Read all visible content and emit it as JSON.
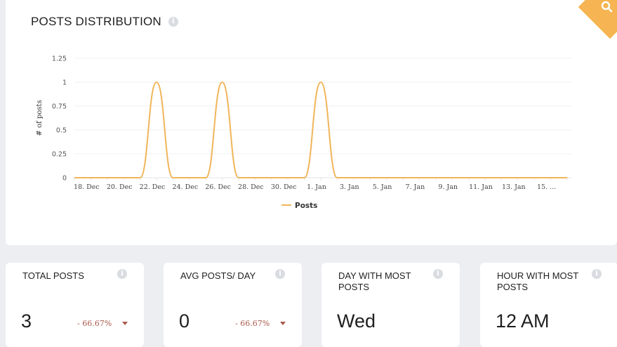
{
  "posts_distribution": {
    "title": "POSTS DISTRIBUTION"
  },
  "accent_color": "#f6b552",
  "line_color": "#f0b55a",
  "change_color": "#a8594b",
  "chart_data": {
    "type": "line",
    "xlabel": "",
    "ylabel": "# of posts",
    "ylim": [
      0,
      1.25
    ],
    "y_ticks": [
      "1.25",
      "1",
      "0.75",
      "0.5",
      "0.25",
      "0"
    ],
    "x_tick_labels": [
      "18. Dec",
      "20. Dec",
      "22. Dec",
      "24. Dec",
      "26. Dec",
      "28. Dec",
      "30. Dec",
      "1. Jan",
      "3. Jan",
      "5. Jan",
      "7. Jan",
      "9. Jan",
      "11. Jan",
      "13. Jan",
      "15. ..."
    ],
    "x_range": [
      "17. Dec",
      "16. Jan"
    ],
    "grid": true,
    "legend": "bottom-center",
    "series": [
      {
        "name": "Posts",
        "x": [
          "17. Dec",
          "18. Dec",
          "19. Dec",
          "20. Dec",
          "21. Dec",
          "22. Dec",
          "23. Dec",
          "24. Dec",
          "25. Dec",
          "26. Dec",
          "27. Dec",
          "28. Dec",
          "29. Dec",
          "30. Dec",
          "31. Dec",
          "1. Jan",
          "2. Jan",
          "3. Jan",
          "4. Jan",
          "5. Jan",
          "6. Jan",
          "7. Jan",
          "8. Jan",
          "9. Jan",
          "10. Jan",
          "11. Jan",
          "12. Jan",
          "13. Jan",
          "14. Jan",
          "15. Jan",
          "16. Jan"
        ],
        "values": [
          0,
          0,
          0,
          0,
          0,
          1,
          0,
          0,
          0,
          1,
          0,
          0,
          0,
          0,
          0,
          1,
          0,
          0,
          0,
          0,
          0,
          0,
          0,
          0,
          0,
          0,
          0,
          0,
          0,
          0,
          0
        ]
      }
    ]
  },
  "stats": [
    {
      "label": "TOTAL POSTS",
      "value": "3",
      "change": "- 66.67%"
    },
    {
      "label": "AVG POSTS/ DAY",
      "value": "0",
      "change": "- 66.67%"
    },
    {
      "label": "DAY WITH MOST POSTS",
      "value": "Wed"
    },
    {
      "label": "HOUR WITH MOST POSTS",
      "value": "12 AM"
    }
  ]
}
